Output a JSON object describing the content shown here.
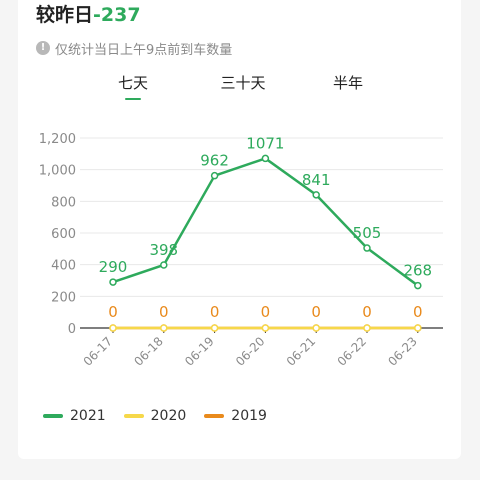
{
  "headline": {
    "prefix": "较昨日",
    "delta": "-237"
  },
  "notice": {
    "icon": "info-icon",
    "text": "仅统计当日上午9点前到车数量"
  },
  "tabs": [
    {
      "label": "七天",
      "active": true
    },
    {
      "label": "三十天",
      "active": false
    },
    {
      "label": "半年",
      "active": false
    }
  ],
  "colors": {
    "s2021": "#2eaa5c",
    "s2020": "#f6d84a",
    "s2019": "#e98a1c",
    "grid": "#e8e8e8"
  },
  "chart_data": {
    "type": "line",
    "categories": [
      "06-17",
      "06-18",
      "06-19",
      "06-20",
      "06-21",
      "06-22",
      "06-23"
    ],
    "ylim": [
      0,
      1200
    ],
    "yticks": [
      "0",
      "200",
      "400",
      "600",
      "800",
      "1,000",
      "1,200"
    ],
    "ytick_values": [
      0,
      200,
      400,
      600,
      800,
      1000,
      1200
    ],
    "series": [
      {
        "name": "2021",
        "color": "#2eaa5c",
        "values": [
          290,
          398,
          962,
          1071,
          841,
          505,
          268
        ],
        "labels": [
          "290",
          "398",
          "962",
          "1071",
          "841",
          "505",
          "268"
        ]
      },
      {
        "name": "2020",
        "color": "#f6d84a",
        "values": [
          0,
          0,
          0,
          0,
          0,
          0,
          0
        ],
        "labels": []
      },
      {
        "name": "2019",
        "color": "#e98a1c",
        "values": [
          0,
          0,
          0,
          0,
          0,
          0,
          0
        ],
        "labels": [
          "0",
          "0",
          "0",
          "0",
          "0",
          "0",
          "0"
        ]
      }
    ],
    "grid": true,
    "legend": "bottom-left"
  }
}
